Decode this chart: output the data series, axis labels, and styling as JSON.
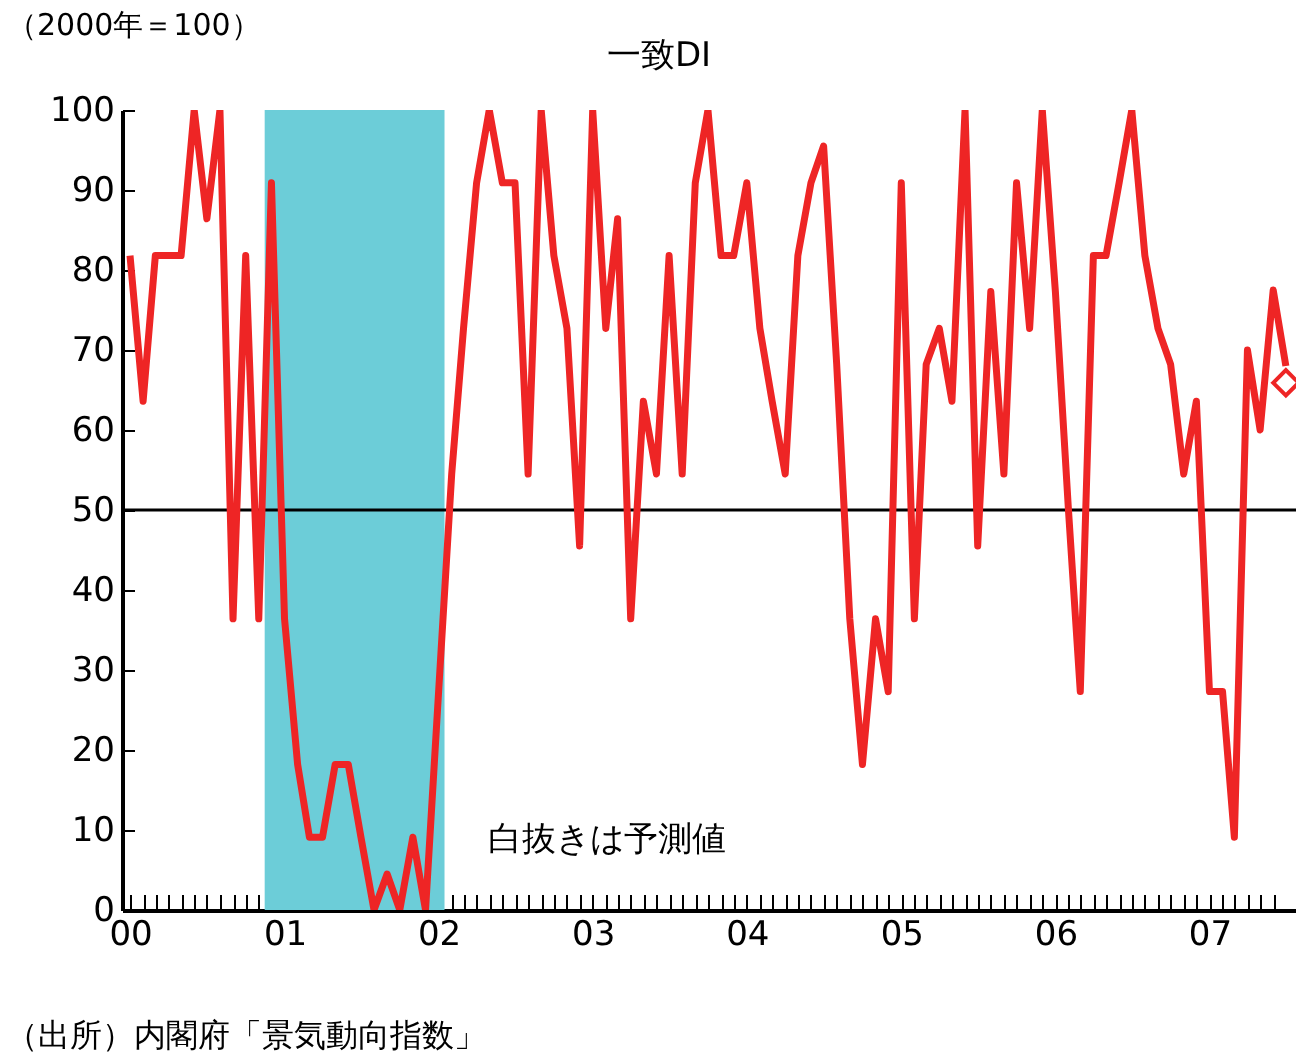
{
  "chart_data": {
    "type": "line",
    "title": "一致DI",
    "ylabel": "（2000年＝100）",
    "annotations": [
      "白抜きは予測値",
      "（出所）内閣府「景気動向指数」"
    ],
    "x": [
      "2000-01",
      "2000-02",
      "2000-03",
      "2000-04",
      "2000-05",
      "2000-06",
      "2000-07",
      "2000-08",
      "2000-09",
      "2000-10",
      "2000-11",
      "2000-12",
      "2001-01",
      "2001-02",
      "2001-03",
      "2001-04",
      "2001-05",
      "2001-06",
      "2001-07",
      "2001-08",
      "2001-09",
      "2001-10",
      "2001-11",
      "2001-12",
      "2002-01",
      "2002-02",
      "2002-03",
      "2002-04",
      "2002-05",
      "2002-06",
      "2002-07",
      "2002-08",
      "2002-09",
      "2002-10",
      "2002-11",
      "2002-12",
      "2003-01",
      "2003-02",
      "2003-03",
      "2003-04",
      "2003-05",
      "2003-06",
      "2003-07",
      "2003-08",
      "2003-09",
      "2003-10",
      "2003-11",
      "2003-12",
      "2004-01",
      "2004-02",
      "2004-03",
      "2004-04",
      "2004-05",
      "2004-06",
      "2004-07",
      "2004-08",
      "2004-09",
      "2004-10",
      "2004-11",
      "2004-12",
      "2005-01",
      "2005-02",
      "2005-03",
      "2005-04",
      "2005-05",
      "2005-06",
      "2005-07",
      "2005-08",
      "2005-09",
      "2005-10",
      "2005-11",
      "2005-12",
      "2006-01",
      "2006-02",
      "2006-03",
      "2006-04",
      "2006-05",
      "2006-06",
      "2006-07",
      "2006-08",
      "2006-09",
      "2006-10",
      "2006-11",
      "2006-12",
      "2007-01",
      "2007-02",
      "2007-03",
      "2007-04",
      "2007-05",
      "2007-06",
      "2007-07"
    ],
    "series": [
      {
        "color": "#ee2525",
        "values": [
          81.8,
          63.6,
          81.8,
          81.8,
          81.8,
          100,
          86.4,
          100,
          36.4,
          81.8,
          36.4,
          90.9,
          36.4,
          18.2,
          9.1,
          9.1,
          18.2,
          18.2,
          9.1,
          0,
          4.5,
          0,
          9.1,
          0,
          27.3,
          54.5,
          72.7,
          90.9,
          100,
          90.9,
          90.9,
          54.5,
          100,
          81.8,
          72.7,
          45.5,
          100,
          72.7,
          86.4,
          36.4,
          63.6,
          54.5,
          81.8,
          54.5,
          90.9,
          100,
          81.8,
          81.8,
          90.9,
          72.7,
          63.6,
          54.5,
          81.8,
          90.9,
          95.5,
          68.2,
          36.4,
          18.2,
          36.4,
          27.3,
          90.9,
          36.4,
          68.2,
          72.7,
          63.6,
          100,
          45.5,
          77.3,
          54.5,
          90.9,
          72.7,
          100,
          77.3,
          50,
          27.3,
          81.8,
          81.8,
          90.9,
          100,
          81.8,
          72.7,
          68.2,
          54.5,
          63.6,
          27.3,
          27.3,
          9.1,
          70,
          60,
          77.5,
          68
        ]
      },
      {
        "type": "scatter",
        "color": "#ee2525",
        "marker": "diamond",
        "x": [
          "2007-07"
        ],
        "values": [
          65.9
        ]
      }
    ],
    "xlim": [
      "1999-12-13",
      "2007-07-25"
    ],
    "xticks": [
      {
        "value": "2000-01",
        "label": "00"
      },
      {
        "value": "2000-02",
        "label": null
      },
      {
        "value": "2000-03",
        "label": null
      },
      {
        "value": "2000-04",
        "label": null
      },
      {
        "value": "2000-05",
        "label": null
      },
      {
        "value": "2000-06",
        "label": null
      },
      {
        "value": "2000-07",
        "label": null
      },
      {
        "value": "2000-08",
        "label": null
      },
      {
        "value": "2000-09",
        "label": null
      },
      {
        "value": "2000-10",
        "label": null
      },
      {
        "value": "2000-11",
        "label": null
      },
      {
        "value": "2000-12",
        "label": null
      },
      {
        "value": "2001-01",
        "label": "01"
      },
      {
        "value": "2001-02",
        "label": null
      },
      {
        "value": "2001-03",
        "label": null
      },
      {
        "value": "2001-04",
        "label": null
      },
      {
        "value": "2001-05",
        "label": null
      },
      {
        "value": "2001-06",
        "label": null
      },
      {
        "value": "2001-07",
        "label": null
      },
      {
        "value": "2001-08",
        "label": null
      },
      {
        "value": "2001-09",
        "label": null
      },
      {
        "value": "2001-10",
        "label": null
      },
      {
        "value": "2001-11",
        "label": null
      },
      {
        "value": "2001-12",
        "label": null
      },
      {
        "value": "2002-01",
        "label": "02"
      },
      {
        "value": "2002-02",
        "label": null
      },
      {
        "value": "2002-03",
        "label": null
      },
      {
        "value": "2002-04",
        "label": null
      },
      {
        "value": "2002-05",
        "label": null
      },
      {
        "value": "2002-06",
        "label": null
      },
      {
        "value": "2002-07",
        "label": null
      },
      {
        "value": "2002-08",
        "label": null
      },
      {
        "value": "2002-09",
        "label": null
      },
      {
        "value": "2002-10",
        "label": null
      },
      {
        "value": "2002-11",
        "label": null
      },
      {
        "value": "2002-12",
        "label": null
      },
      {
        "value": "2003-01",
        "label": "03"
      },
      {
        "value": "2003-02",
        "label": null
      },
      {
        "value": "2003-03",
        "label": null
      },
      {
        "value": "2003-04",
        "label": null
      },
      {
        "value": "2003-05",
        "label": null
      },
      {
        "value": "2003-06",
        "label": null
      },
      {
        "value": "2003-07",
        "label": null
      },
      {
        "value": "2003-08",
        "label": null
      },
      {
        "value": "2003-09",
        "label": null
      },
      {
        "value": "2003-10",
        "label": null
      },
      {
        "value": "2003-11",
        "label": null
      },
      {
        "value": "2003-12",
        "label": null
      },
      {
        "value": "2004-01",
        "label": "04"
      },
      {
        "value": "2004-02",
        "label": null
      },
      {
        "value": "2004-03",
        "label": null
      },
      {
        "value": "2004-04",
        "label": null
      },
      {
        "value": "2004-05",
        "label": null
      },
      {
        "value": "2004-06",
        "label": null
      },
      {
        "value": "2004-07",
        "label": null
      },
      {
        "value": "2004-08",
        "label": null
      },
      {
        "value": "2004-09",
        "label": null
      },
      {
        "value": "2004-10",
        "label": null
      },
      {
        "value": "2004-11",
        "label": null
      },
      {
        "value": "2004-12",
        "label": null
      },
      {
        "value": "2005-01",
        "label": "05"
      },
      {
        "value": "2005-02",
        "label": null
      },
      {
        "value": "2005-03",
        "label": null
      },
      {
        "value": "2005-04",
        "label": null
      },
      {
        "value": "2005-05",
        "label": null
      },
      {
        "value": "2005-06",
        "label": null
      },
      {
        "value": "2005-07",
        "label": null
      },
      {
        "value": "2005-08",
        "label": null
      },
      {
        "value": "2005-09",
        "label": null
      },
      {
        "value": "2005-10",
        "label": null
      },
      {
        "value": "2005-11",
        "label": null
      },
      {
        "value": "2005-12",
        "label": null
      },
      {
        "value": "2006-01",
        "label": "06"
      },
      {
        "value": "2006-02",
        "label": null
      },
      {
        "value": "2006-03",
        "label": null
      },
      {
        "value": "2006-04",
        "label": null
      },
      {
        "value": "2006-05",
        "label": null
      },
      {
        "value": "2006-06",
        "label": null
      },
      {
        "value": "2006-07",
        "label": null
      },
      {
        "value": "2006-08",
        "label": null
      },
      {
        "value": "2006-09",
        "label": null
      },
      {
        "value": "2006-10",
        "label": null
      },
      {
        "value": "2006-11",
        "label": null
      },
      {
        "value": "2006-12",
        "label": null
      },
      {
        "value": "2007-01",
        "label": "07"
      },
      {
        "value": "2007-02",
        "label": null
      },
      {
        "value": "2007-03",
        "label": null
      },
      {
        "value": "2007-04",
        "label": null
      },
      {
        "value": "2007-05",
        "label": null
      },
      {
        "value": "2007-06",
        "label": null
      }
    ],
    "ylim": [
      0,
      100
    ],
    "yticks": [
      0,
      10,
      20,
      30,
      40,
      50,
      60,
      70,
      80,
      90,
      100
    ],
    "ref_lines": [
      {
        "axis": "y",
        "value": 50,
        "color": "#000000"
      }
    ],
    "bands": [
      {
        "axis": "x",
        "from": "2000-11-15",
        "to": "2002-01-15",
        "color": "#6ccdd8"
      }
    ],
    "grid": false,
    "line_style": "solid"
  }
}
